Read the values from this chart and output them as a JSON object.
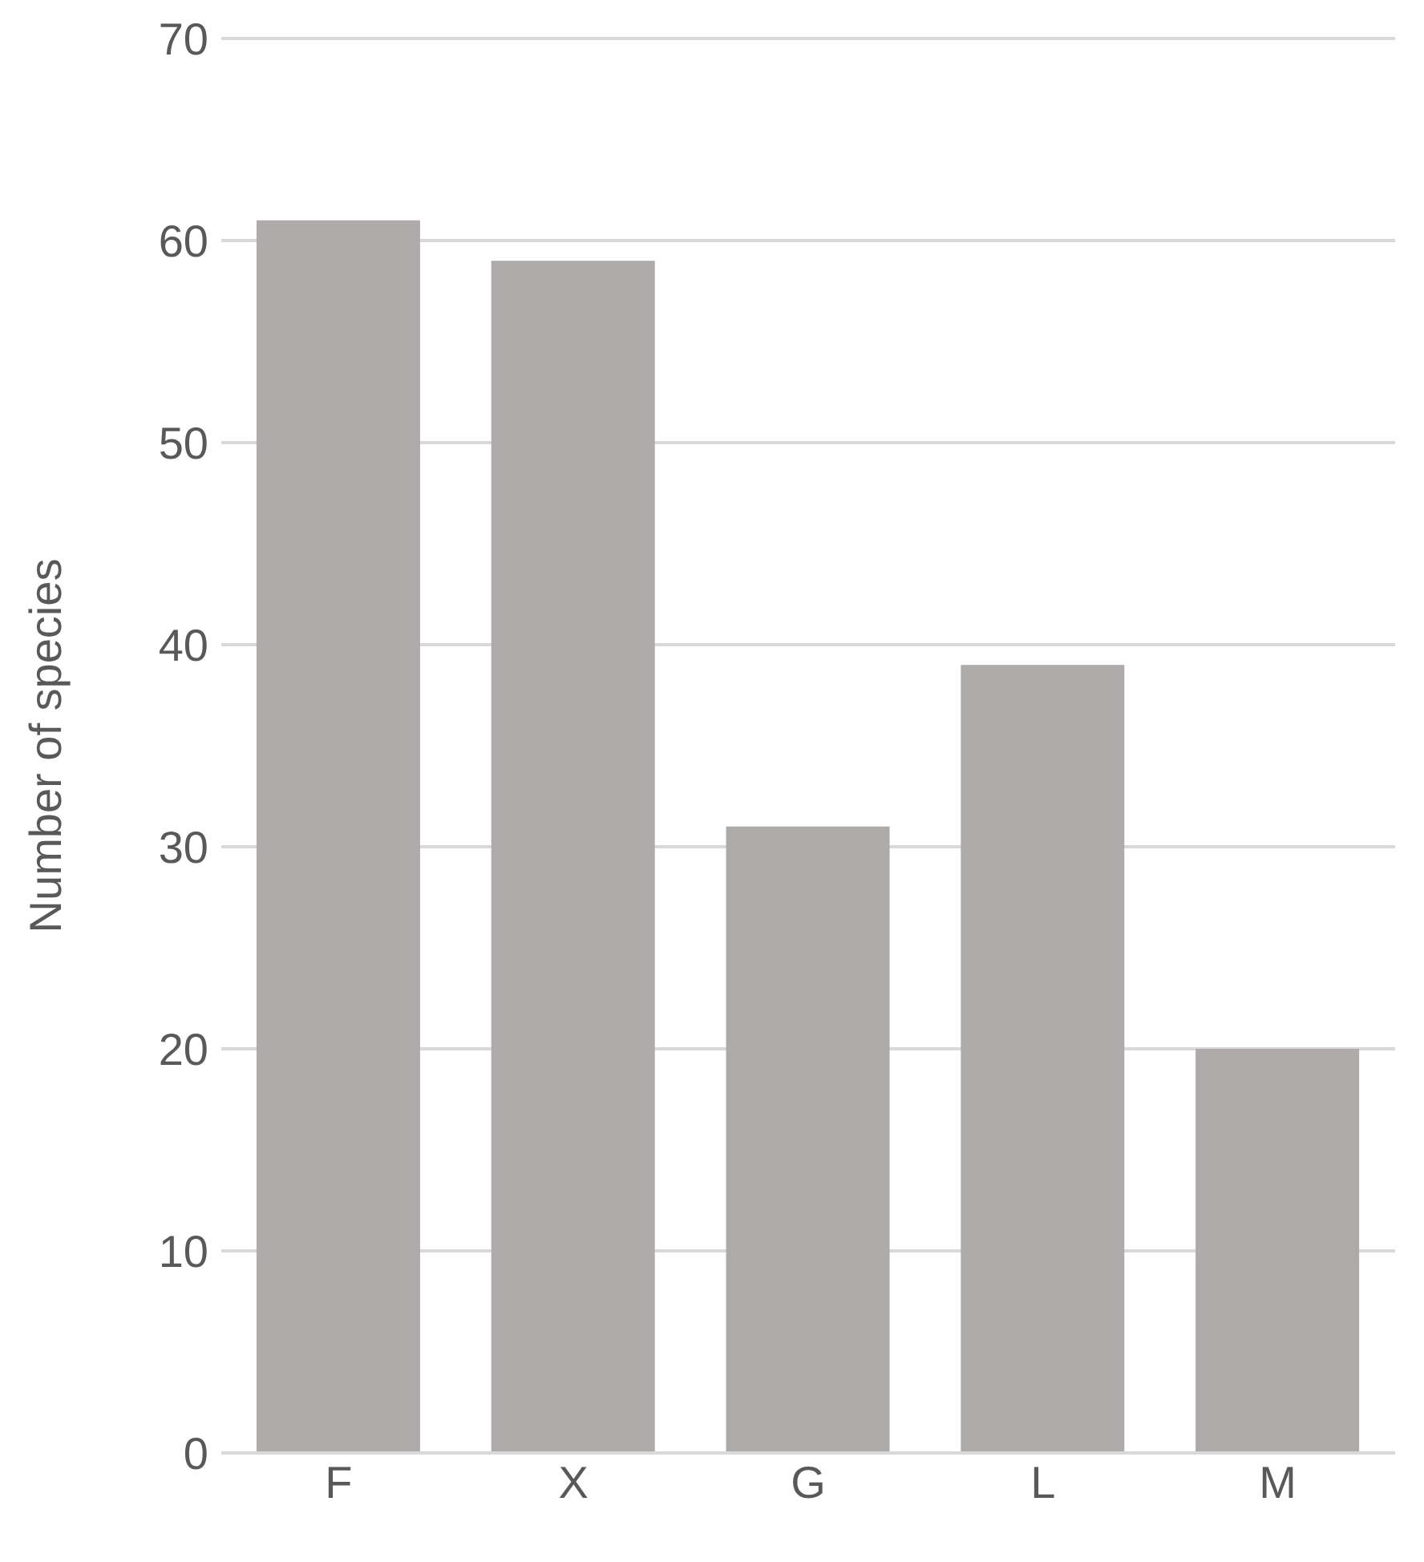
{
  "chart_data": {
    "type": "bar",
    "ylabel": "Number of species",
    "categories": [
      "F",
      "X",
      "G",
      "L",
      "M"
    ],
    "values": [
      61,
      59,
      31,
      39,
      20
    ],
    "color": "#aeaaaa",
    "ylim": [
      0,
      70
    ],
    "yticks": [
      0,
      10,
      20,
      30,
      40,
      50,
      60,
      70
    ],
    "grid": "y"
  }
}
